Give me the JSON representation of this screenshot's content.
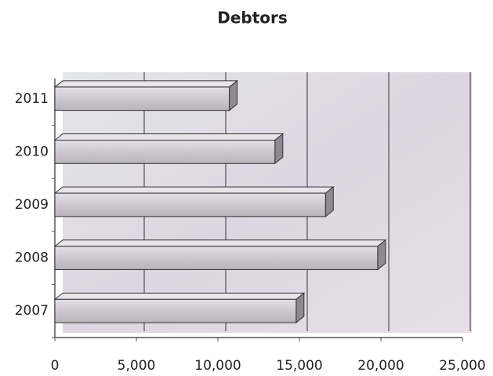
{
  "chart_data": {
    "type": "bar",
    "orientation": "horizontal",
    "title": "Debtors",
    "categories": [
      "2007",
      "2008",
      "2009",
      "2010",
      "2011"
    ],
    "values": [
      14800,
      19800,
      16600,
      13500,
      10700
    ],
    "color": "#c9c4cc",
    "xlim": [
      0,
      25000
    ],
    "xticks": [
      0,
      {
        "value": 5000,
        "label": "5,000"
      },
      {
        "value": 10000,
        "label": "10,000"
      },
      {
        "value": 15000,
        "label": "15,000"
      },
      {
        "value": 20000,
        "label": "20,000"
      },
      {
        "value": 25000,
        "label": "25,000"
      }
    ],
    "grid": true
  }
}
